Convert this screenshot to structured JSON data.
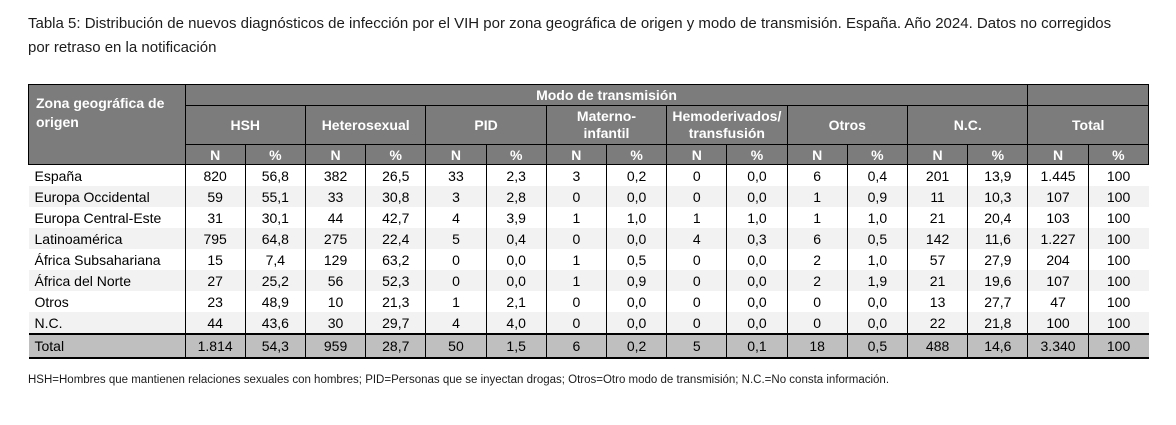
{
  "page": {
    "title": "Tabla 5: Distribución de nuevos diagnósticos de infección por el VIH por zona geográfica de origen y modo de transmisión. España. Año 2024. Datos no corregidos por retraso en la notificación",
    "footnote": "HSH=Hombres que mantienen relaciones sexuales con hombres; PID=Personas que se inyectan drogas; Otros=Otro modo de transmisión; N.C.=No consta información."
  },
  "colors": {
    "header_bg": "#7c7c7c",
    "header_text": "#ffffff",
    "zebra_row_bg": "#f2f2f2",
    "total_row_bg": "#bfbfbf",
    "border": "#000000"
  },
  "table": {
    "corner_header": "Zona geográfica de origen",
    "transmission_header": "Modo de transmisión",
    "mode_groups": [
      "HSH",
      "Heterosexual",
      "PID",
      "Materno-\ninfantil",
      "Hemoderivados/\ntransfusión",
      "Otros",
      "N.C.",
      "Total"
    ],
    "subheaders": [
      "N",
      "%"
    ],
    "rows": [
      {
        "label": "España",
        "values": [
          "820",
          "56,8",
          "382",
          "26,5",
          "33",
          "2,3",
          "3",
          "0,2",
          "0",
          "0,0",
          "6",
          "0,4",
          "201",
          "13,9",
          "1.445",
          "100"
        ]
      },
      {
        "label": "Europa Occidental",
        "values": [
          "59",
          "55,1",
          "33",
          "30,8",
          "3",
          "2,8",
          "0",
          "0,0",
          "0",
          "0,0",
          "1",
          "0,9",
          "11",
          "10,3",
          "107",
          "100"
        ]
      },
      {
        "label": "Europa Central-Este",
        "values": [
          "31",
          "30,1",
          "44",
          "42,7",
          "4",
          "3,9",
          "1",
          "1,0",
          "1",
          "1,0",
          "1",
          "1,0",
          "21",
          "20,4",
          "103",
          "100"
        ]
      },
      {
        "label": "Latinoamérica",
        "values": [
          "795",
          "64,8",
          "275",
          "22,4",
          "5",
          "0,4",
          "0",
          "0,0",
          "4",
          "0,3",
          "6",
          "0,5",
          "142",
          "11,6",
          "1.227",
          "100"
        ]
      },
      {
        "label": "África Subsahariana",
        "values": [
          "15",
          "7,4",
          "129",
          "63,2",
          "0",
          "0,0",
          "1",
          "0,5",
          "0",
          "0,0",
          "2",
          "1,0",
          "57",
          "27,9",
          "204",
          "100"
        ]
      },
      {
        "label": "África del Norte",
        "values": [
          "27",
          "25,2",
          "56",
          "52,3",
          "0",
          "0,0",
          "1",
          "0,9",
          "0",
          "0,0",
          "2",
          "1,9",
          "21",
          "19,6",
          "107",
          "100"
        ]
      },
      {
        "label": "Otros",
        "values": [
          "23",
          "48,9",
          "10",
          "21,3",
          "1",
          "2,1",
          "0",
          "0,0",
          "0",
          "0,0",
          "0",
          "0,0",
          "13",
          "27,7",
          "47",
          "100"
        ]
      },
      {
        "label": "N.C.",
        "values": [
          "44",
          "43,6",
          "30",
          "29,7",
          "4",
          "4,0",
          "0",
          "0,0",
          "0",
          "0,0",
          "0",
          "0,0",
          "22",
          "21,8",
          "100",
          "100"
        ]
      }
    ],
    "total_row": {
      "label": "Total",
      "values": [
        "1.814",
        "54,3",
        "959",
        "28,7",
        "50",
        "1,5",
        "6",
        "0,2",
        "5",
        "0,1",
        "18",
        "0,5",
        "488",
        "14,6",
        "3.340",
        "100"
      ]
    }
  }
}
